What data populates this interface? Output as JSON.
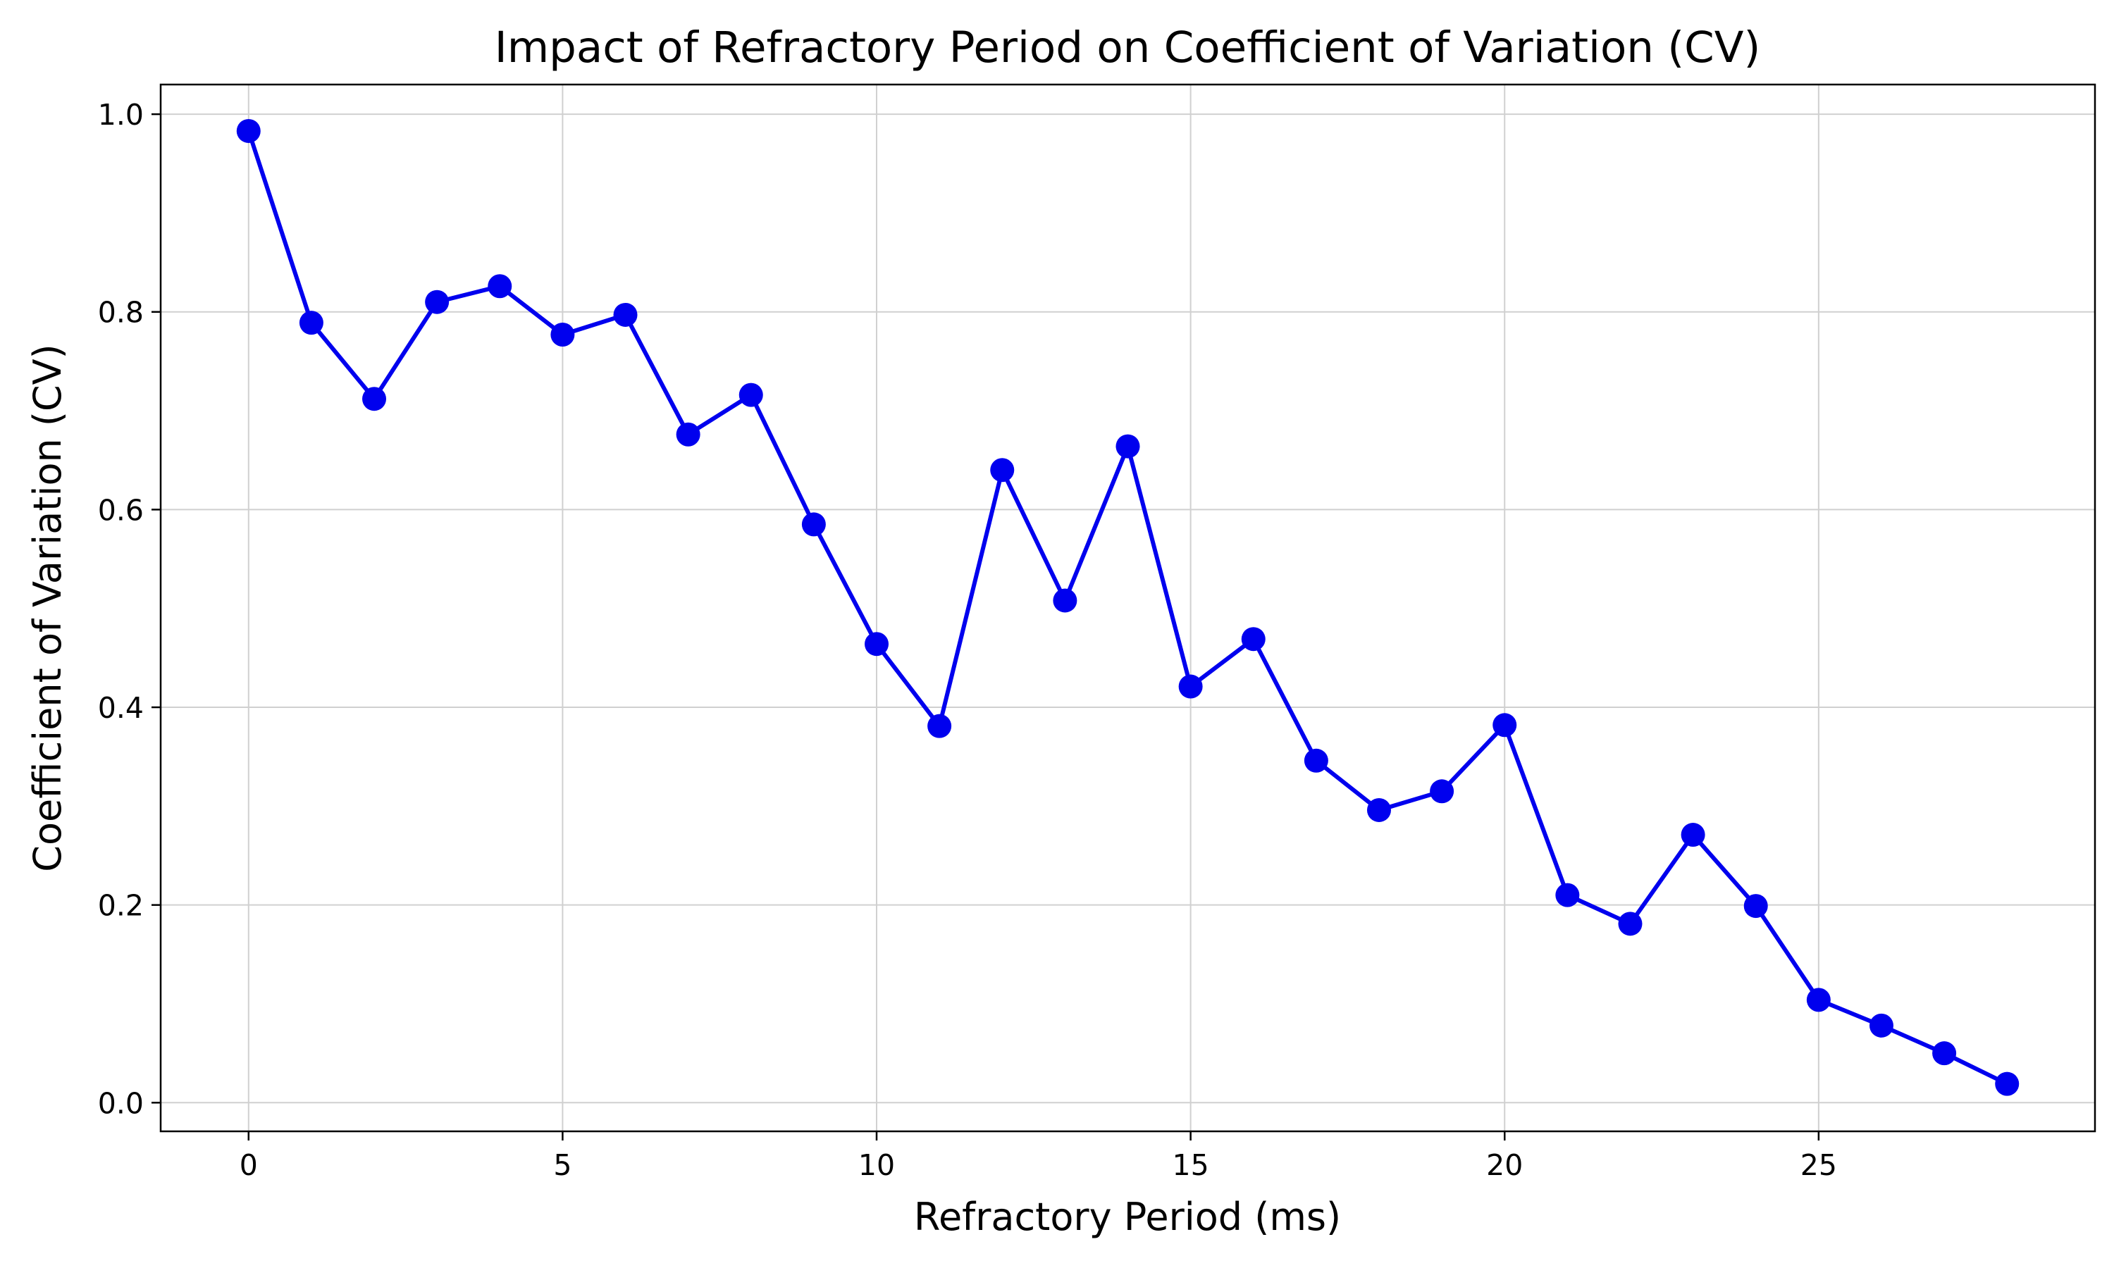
{
  "chart_data": {
    "type": "line",
    "title": "Impact of Refractory Period on Coefficient of Variation (CV)",
    "xlabel": "Refractory Period (ms)",
    "ylabel": "Coefficient of Variation (CV)",
    "xlim": [
      -1.4,
      29.4
    ],
    "ylim": [
      -0.029,
      1.03
    ],
    "xticks": [
      0,
      5,
      10,
      15,
      20,
      25
    ],
    "yticks": [
      0.0,
      0.2,
      0.4,
      0.6,
      0.8,
      1.0
    ],
    "xtick_labels": [
      "0",
      "5",
      "10",
      "15",
      "20",
      "25"
    ],
    "ytick_labels": [
      "0.0",
      "0.2",
      "0.4",
      "0.6",
      "0.8",
      "1.0"
    ],
    "grid": true,
    "legend": "none",
    "series": [
      {
        "color": "#0000ee",
        "marker": "circle",
        "x": [
          0,
          1,
          2,
          3,
          4,
          5,
          6,
          7,
          8,
          9,
          10,
          11,
          12,
          13,
          14,
          15,
          16,
          17,
          18,
          19,
          20,
          21,
          22,
          23,
          24,
          25,
          26,
          27,
          28
        ],
        "y": [
          0.983,
          0.789,
          0.712,
          0.81,
          0.826,
          0.777,
          0.797,
          0.676,
          0.716,
          0.585,
          0.464,
          0.381,
          0.64,
          0.508,
          0.664,
          0.421,
          0.469,
          0.346,
          0.296,
          0.315,
          0.382,
          0.21,
          0.181,
          0.271,
          0.199,
          0.104,
          0.078,
          0.05,
          0.019
        ]
      }
    ]
  },
  "colors": {
    "line": "#0000ee",
    "grid": "#d0d0d0",
    "axes": "#000000"
  }
}
